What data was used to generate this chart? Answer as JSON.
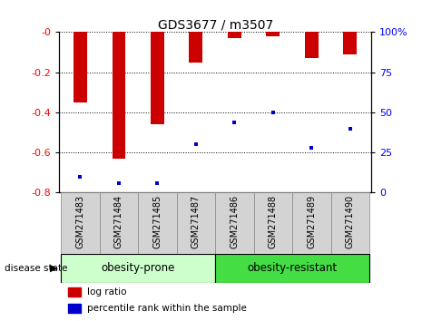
{
  "title": "GDS3677 / m3507",
  "samples": [
    "GSM271483",
    "GSM271484",
    "GSM271485",
    "GSM271487",
    "GSM271486",
    "GSM271488",
    "GSM271489",
    "GSM271490"
  ],
  "log_ratios": [
    -0.35,
    -0.63,
    -0.46,
    -0.15,
    -0.03,
    -0.02,
    -0.13,
    -0.11
  ],
  "percentile_ranks": [
    10,
    6,
    6,
    30,
    44,
    50,
    28,
    40
  ],
  "group1_label": "obesity-prone",
  "group1_count": 4,
  "group2_label": "obesity-resistant",
  "group2_count": 4,
  "group_label": "disease state",
  "bar_color": "#cc0000",
  "dot_color": "#0000cc",
  "group1_bg": "#ccffcc",
  "group2_bg": "#44dd44",
  "ylim_min": -0.8,
  "ylim_max": 0.0,
  "yticks_left": [
    0,
    -0.2,
    -0.4,
    -0.6,
    -0.8
  ],
  "ytick_labels_left": [
    "-0",
    "-0.2",
    "-0.4",
    "-0.6",
    "-0.8"
  ],
  "yticks_right": [
    0,
    25,
    50,
    75,
    100
  ],
  "ytick_labels_right": [
    "0",
    "25",
    "50",
    "75",
    "100%"
  ],
  "bar_width": 0.35
}
